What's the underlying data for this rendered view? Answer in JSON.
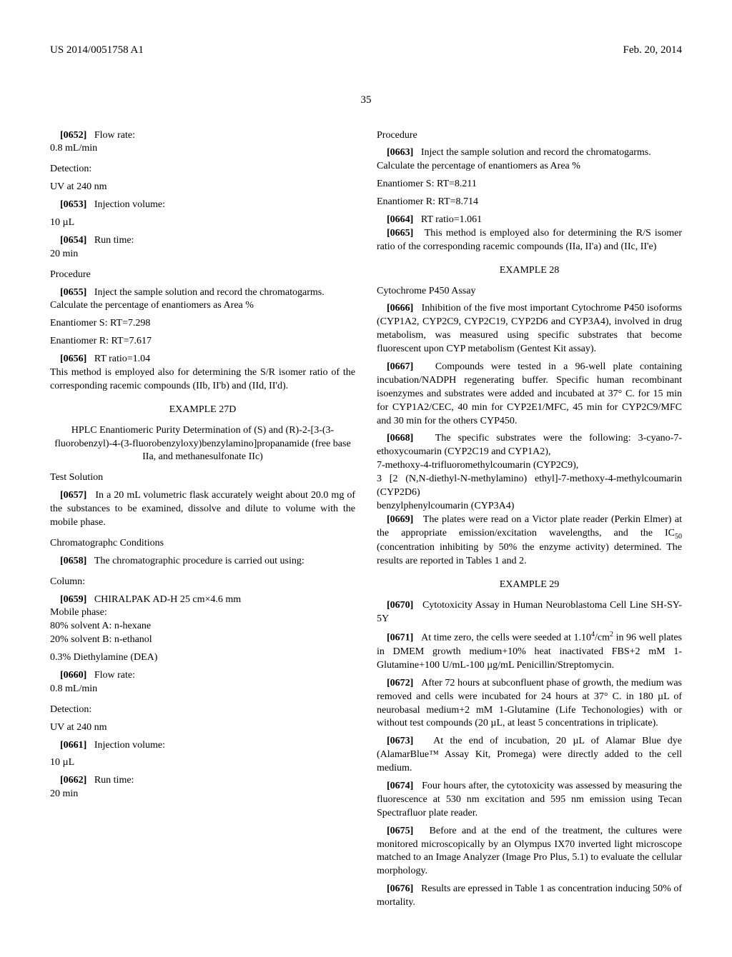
{
  "header": {
    "left": "US 2014/0051758 A1",
    "right": "Feb. 20, 2014"
  },
  "page_number": "35",
  "left_col": {
    "p0652_num": "[0652]",
    "p0652_text": "Flow rate:",
    "p0652_value": "0.8 mL/min",
    "detection_label": "Detection:",
    "uv_label": "UV at 240 nm",
    "p0653_num": "[0653]",
    "p0653_text": "Injection volume:",
    "inj_vol": "10 µL",
    "p0654_num": "[0654]",
    "p0654_text": "Run time:",
    "run_time": "20 min",
    "procedure_label": "Procedure",
    "p0655_num": "[0655]",
    "p0655_text": "Inject the sample solution and record the chromatogarms.",
    "calc_text": "Calculate the percentage of enantiomers as Area %",
    "enant_s": "Enantiomer S: RT=7.298",
    "enant_r": "Enantiomer R: RT=7.617",
    "p0656_num": "[0656]",
    "p0656_text": "RT ratio=1.04",
    "p0656_follow": "This method is employed also for determining the S/R isomer ratio of the corresponding racemic compounds (IIb, II'b) and (IId, II'd).",
    "example_27d": "EXAMPLE 27D",
    "ex27d_title": "HPLC Enantiomeric Purity Determination of (S) and (R)-2-[3-(3-fluorobenzyl)-4-(3-fluorobenzyloxy)benzylamino]propanamide (free base IIa, and methanesulfonate IIc)",
    "test_sol": "Test Solution",
    "p0657_num": "[0657]",
    "p0657_text": "In a 20 mL volumetric flask accurately weight about 20.0 mg of the substances to be examined, dissolve and dilute to volume with the mobile phase.",
    "chrom_cond": "Chromatographc Conditions",
    "p0658_num": "[0658]",
    "p0658_text": "The chromatographic procedure is carried out using:",
    "column_label": "Column:",
    "p0659_num": "[0659]",
    "p0659_text": "CHIRALPAK AD-H 25 cm×4.6 mm",
    "mobile_phase": "Mobile phase:",
    "solv_a": "80% solvent A: n-hexane",
    "solv_b": "20% solvent B: n-ethanol",
    "dea": "0.3% Diethylamine (DEA)",
    "p0660_num": "[0660]",
    "p0660_text": "Flow rate:",
    "p0660_value": "0.8 mL/min",
    "detection2": "Detection:",
    "uv2": "UV at 240 nm",
    "p0661_num": "[0661]",
    "p0661_text": "Injection volume:",
    "inj_vol2": "10 µL",
    "p0662_num": "[0662]",
    "p0662_text": "Run time:",
    "run_time2": "20 min"
  },
  "right_col": {
    "procedure_label": "Procedure",
    "p0663_num": "[0663]",
    "p0663_text": "Inject the sample solution and record the chromatogarms.",
    "calc_text": "Calculate the percentage of enantiomers as Area %",
    "enant_s": "Enantiomer S: RT=8.211",
    "enant_r": "Enantiomer R: RT=8.714",
    "p0664_num": "[0664]",
    "p0664_text": "RT ratio=1.061",
    "p0665_num": "[0665]",
    "p0665_text": "This method is employed also for determining the R/S isomer ratio of the corresponding racemic compounds (IIa, II'a) and (IIc, II'e)",
    "example_28": "EXAMPLE 28",
    "cyp_assay": "Cytochrome P450 Assay",
    "p0666_num": "[0666]",
    "p0666_text": "Inhibition of the five most important Cytochrome P450 isoforms (CYP1A2, CYP2C9, CYP2C19, CYP2D6 and CYP3A4), involved in drug metabolism, was measured using specific substrates that become fluorescent upon CYP metabolism (Gentest Kit assay).",
    "p0667_num": "[0667]",
    "p0667_text": "Compounds were tested in a 96-well plate containing incubation/NADPH regenerating buffer. Specific human recombinant isoenzymes and substrates were added and incubated at 37° C. for 15 min for CYP1A2/CEC, 40 min for CYP2E1/MFC, 45 min for CYP2C9/MFC and 30 min for the others CYP450.",
    "p0668_num": "[0668]",
    "p0668_text": "The specific substrates were the following: 3-cyano-7-ethoxycoumarin (CYP2C19 and CYP1A2),",
    "sub2": "7-methoxy-4-trifluoromethylcoumarin (CYP2C9),",
    "sub3": "3 [2 (N,N-diethyl-N-methylamino) ethyl]-7-methoxy-4-methylcoumarin (CYP2D6)",
    "sub4": "benzylphenylcoumarin (CYP3A4)",
    "p0669_num": "[0669]",
    "p0669_text_a": "The plates were read on a Victor plate reader (Perkin Elmer) at the appropriate emission/excitation wavelengths, and the IC",
    "p0669_sub": "50",
    "p0669_text_b": " (concentration inhibiting by 50% the enzyme activity) determined. The results are reported in Tables 1 and 2.",
    "example_29": "EXAMPLE 29",
    "p0670_num": "[0670]",
    "p0670_text": "Cytotoxicity Assay in Human Neuroblastoma Cell Line SH-SY-5Y",
    "p0671_num": "[0671]",
    "p0671_text_a": "At time zero, the cells were seeded at 1.10",
    "p0671_sup": "4",
    "p0671_text_b": "/cm",
    "p0671_sup2": "2",
    "p0671_text_c": " in 96 well plates in DMEM growth medium+10% heat inactivated FBS+2 mM 1-Glutamine+100 U/mL-100 µg/mL Penicillin/Streptomycin.",
    "p0672_num": "[0672]",
    "p0672_text": "After 72 hours at subconfluent phase of growth, the medium was removed and cells were incubated for 24 hours at 37° C. in 180 µL of neurobasal medium+2 mM 1-Glutamine (Life Techonologies) with or without test compounds (20 µL, at least 5 concentrations in triplicate).",
    "p0673_num": "[0673]",
    "p0673_text": "At the end of incubation, 20 µL of Alamar Blue dye (AlamarBlue™ Assay Kit, Promega) were directly added to the cell medium.",
    "p0674_num": "[0674]",
    "p0674_text": "Four hours after, the cytotoxicity was assessed by measuring the fluorescence at 530 nm excitation and 595 nm emission using Tecan Spectrafluor plate reader.",
    "p0675_num": "[0675]",
    "p0675_text": "Before and at the end of the treatment, the cultures were monitored microscopically by an Olympus IX70 inverted light microscope matched to an Image Analyzer (Image Pro Plus, 5.1) to evaluate the cellular morphology.",
    "p0676_num": "[0676]",
    "p0676_text": "Results are epressed in Table 1 as concentration inducing 50% of mortality."
  }
}
